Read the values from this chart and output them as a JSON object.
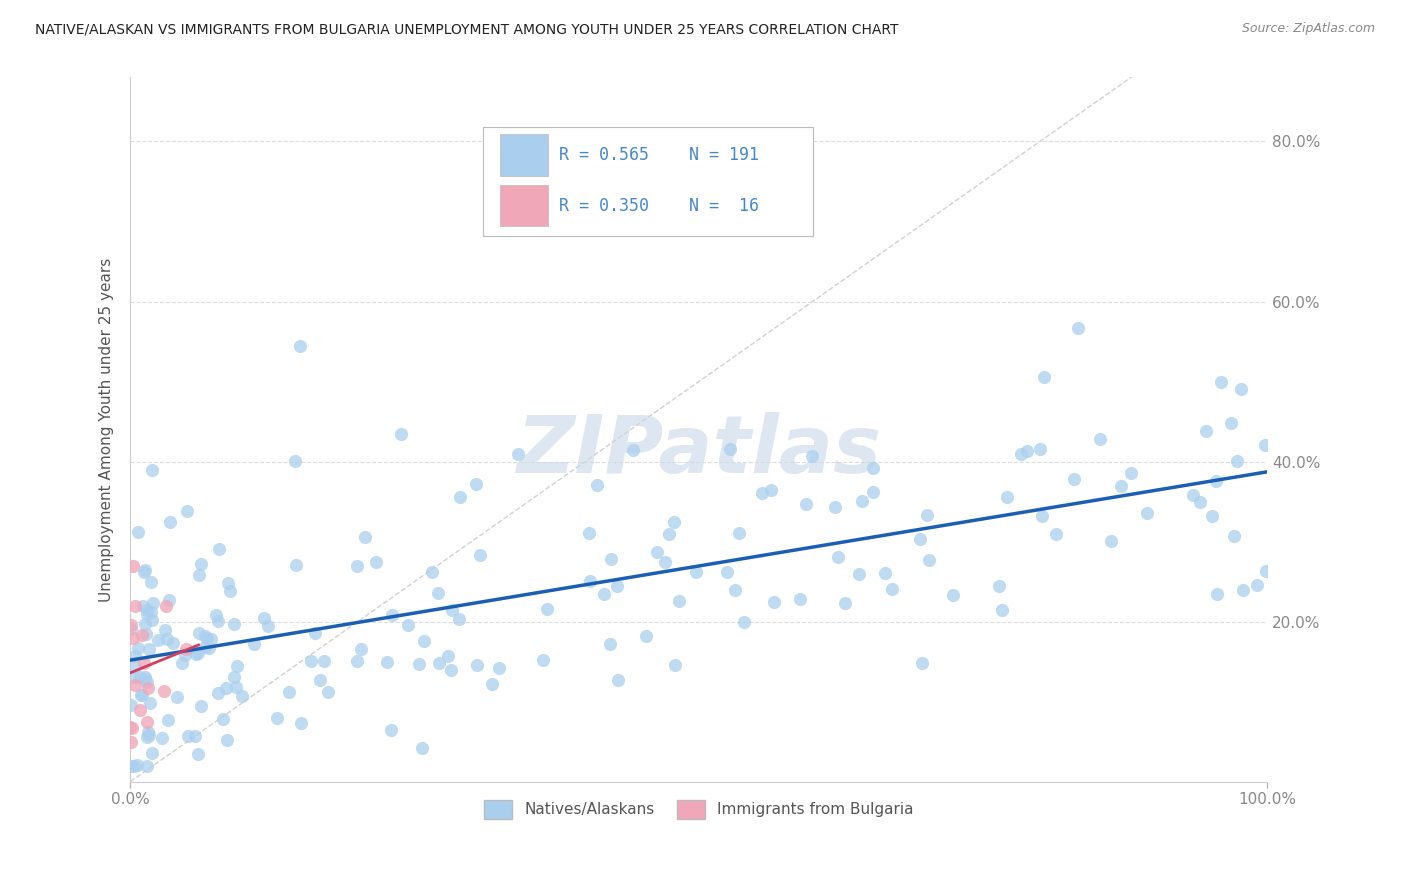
{
  "title": "NATIVE/ALASKAN VS IMMIGRANTS FROM BULGARIA UNEMPLOYMENT AMONG YOUTH UNDER 25 YEARS CORRELATION CHART",
  "source": "Source: ZipAtlas.com",
  "ylabel": "Unemployment Among Youth under 25 years",
  "ytick_labels": [
    "20.0%",
    "40.0%",
    "60.0%",
    "80.0%"
  ],
  "ytick_values": [
    0.2,
    0.4,
    0.6,
    0.8
  ],
  "xlim": [
    0.0,
    1.0
  ],
  "ylim": [
    0.0,
    0.88
  ],
  "legend_native_R": "0.565",
  "legend_native_N": "191",
  "legend_bulgaria_R": "0.350",
  "legend_bulgaria_N": "16",
  "native_color": "#aacfee",
  "bulgaria_color": "#f0a8b8",
  "trend_native_color": "#1a5fb4",
  "trend_bulgaria_color": "#d04060",
  "diagonal_color": "#cccccc",
  "watermark_color": "#c8d8e8",
  "background_color": "#ffffff",
  "grid_color": "#dddddd",
  "tick_color": "#888888",
  "label_color": "#555555",
  "title_color": "#222222",
  "source_color": "#888888"
}
